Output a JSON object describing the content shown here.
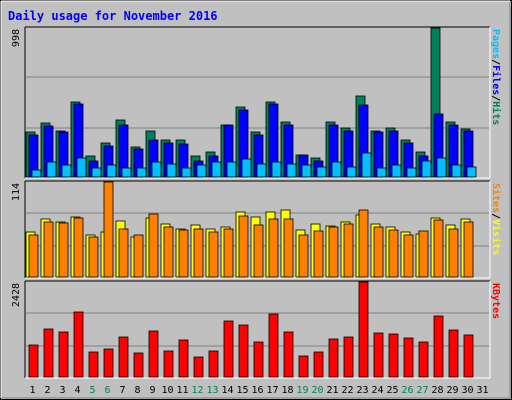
{
  "chart_data": {
    "type": "bar",
    "title": "Daily usage for November 2016",
    "x": [
      "1",
      "2",
      "3",
      "4",
      "5",
      "6",
      "7",
      "8",
      "9",
      "10",
      "11",
      "12",
      "13",
      "14",
      "15",
      "16",
      "17",
      "18",
      "19",
      "20",
      "21",
      "22",
      "23",
      "24",
      "25",
      "26",
      "27",
      "28",
      "29",
      "30",
      "31"
    ],
    "weekend_days": [
      "5",
      "6",
      "12",
      "13",
      "19",
      "20",
      "26",
      "27"
    ],
    "colors": {
      "hits": "#00805c",
      "files": "#0000ff",
      "pages": "#00c0ff",
      "visits": "#ffff00",
      "sites": "#ff8000",
      "kbytes": "#ff0000",
      "weekday_label": "#000000",
      "weekend_label": "#00805c",
      "title": "#0000ff",
      "background": "#c0c0c0",
      "plot_background": "#c0c0c0"
    },
    "panels": [
      {
        "name": "hits-files-pages",
        "ymax_label": "998",
        "ymax": 998,
        "legend": [
          {
            "label": "Pages",
            "color": "#00c0ff"
          },
          {
            "label": "/",
            "color": "#000000"
          },
          {
            "label": "Files",
            "color": "#0000ff"
          },
          {
            "label": "/",
            "color": "#000000"
          },
          {
            "label": "Hits",
            "color": "#00805c"
          }
        ],
        "series": [
          {
            "name": "Hits",
            "values": [
              300,
              360,
              310,
              500,
              140,
              230,
              380,
              200,
              310,
              250,
              250,
              140,
              170,
              350,
              470,
              300,
              500,
              370,
              150,
              130,
              370,
              330,
              540,
              310,
              330,
              250,
              170,
              998,
              370,
              320,
              null
            ]
          },
          {
            "name": "Files",
            "values": [
              280,
              340,
              300,
              490,
              110,
              210,
              350,
              190,
              250,
              230,
              220,
              110,
              140,
              350,
              450,
              280,
              490,
              350,
              150,
              110,
              350,
              310,
              480,
              300,
              310,
              230,
              140,
              420,
              350,
              310,
              null
            ]
          },
          {
            "name": "Pages",
            "values": [
              50,
              100,
              80,
              130,
              60,
              80,
              60,
              60,
              100,
              90,
              60,
              80,
              100,
              100,
              120,
              90,
              100,
              90,
              80,
              70,
              100,
              70,
              160,
              60,
              80,
              60,
              110,
              130,
              80,
              70,
              null
            ]
          }
        ]
      },
      {
        "name": "visits-sites",
        "ymax_label": "114",
        "ymax": 114,
        "legend": [
          {
            "label": "Sites",
            "color": "#ff8000"
          },
          {
            "label": "/",
            "color": "#000000"
          },
          {
            "label": "Visits",
            "color": "#ffff00"
          }
        ],
        "series": [
          {
            "name": "Visits",
            "values": [
              54,
              70,
              66,
              72,
              50,
              54,
              67,
              48,
              71,
              63,
              58,
              62,
              57,
              60,
              78,
              72,
              78,
              80,
              56,
              63,
              61,
              66,
              74,
              64,
              60,
              54,
              51,
              71,
              62,
              70,
              null
            ]
          },
          {
            "name": "Sites",
            "values": [
              50,
              66,
              65,
              71,
              48,
              114,
              58,
              50,
              76,
              60,
              56,
              57,
              54,
              58,
              73,
              62,
              70,
              70,
              50,
              55,
              60,
              64,
              80,
              60,
              56,
              50,
              55,
              68,
              58,
              66,
              null
            ]
          }
        ]
      },
      {
        "name": "kbytes",
        "ymax_label": "2428",
        "ymax": 2428,
        "legend": [
          {
            "label": "KBytes",
            "color": "#ff0000"
          }
        ],
        "series": [
          {
            "name": "KBytes",
            "values": [
              830,
              1230,
              1140,
              1670,
              630,
              720,
              1020,
              620,
              1180,
              660,
              950,
              520,
              660,
              1420,
              1330,
              900,
              1600,
              1160,
              530,
              650,
              980,
              1010,
              2428,
              1120,
              1110,
              990,
              900,
              1560,
              1210,
              1070,
              null
            ]
          }
        ]
      }
    ]
  }
}
